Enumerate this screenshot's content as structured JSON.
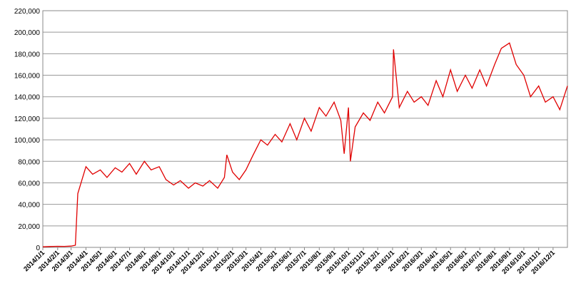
{
  "chart_data": {
    "type": "line",
    "color": "#e00000",
    "grid": true,
    "xlim": [
      "2014/1/1",
      "2016/12/31"
    ],
    "xticks": [
      "2014/1/1",
      "2014/2/1",
      "2014/3/1",
      "2014/4/1",
      "2014/5/1",
      "2014/6/1",
      "2014/7/1",
      "2014/8/1",
      "2014/9/1",
      "2014/10/1",
      "2014/11/1",
      "2014/12/1",
      "2015/1/1",
      "2015/2/1",
      "2015/3/1",
      "2015/4/1",
      "2015/5/1",
      "2015/6/1",
      "2015/7/1",
      "2015/8/1",
      "2015/9/1",
      "2015/10/1",
      "2015/11/1",
      "2015/12/1",
      "2016/1/1",
      "2016/2/1",
      "2016/3/1",
      "2016/4/1",
      "2016/5/1",
      "2016/6/1",
      "2016/7/1",
      "2016/8/1",
      "2016/9/1",
      "2016/10/1",
      "2016/11/1",
      "2016/12/1"
    ],
    "ylim": [
      0,
      220000
    ],
    "yticks": [
      0,
      {
        "value": 20000,
        "label": "20,000"
      },
      {
        "value": 40000,
        "label": "40,000"
      },
      {
        "value": 60000,
        "label": "60,000"
      },
      {
        "value": 80000,
        "label": "80,000"
      },
      {
        "value": 100000,
        "label": "100,000"
      },
      {
        "value": 120000,
        "label": "120,000"
      },
      {
        "value": 140000,
        "label": "140,000"
      },
      {
        "value": 160000,
        "label": "160,000"
      },
      {
        "value": 180000,
        "label": "180,000"
      },
      {
        "value": 200000,
        "label": "200,000"
      },
      {
        "value": 220000,
        "label": "220,000"
      }
    ],
    "x": [
      "2014/1/1",
      "2014/1/15",
      "2014/2/1",
      "2014/2/15",
      "2014/3/1",
      "2014/3/10",
      "2014/3/15",
      "2014/4/1",
      "2014/4/15",
      "2014/5/1",
      "2014/5/15",
      "2014/6/1",
      "2014/6/15",
      "2014/7/1",
      "2014/7/15",
      "2014/8/1",
      "2014/8/15",
      "2014/9/1",
      "2014/9/15",
      "2014/10/1",
      "2014/10/15",
      "2014/11/1",
      "2014/11/15",
      "2014/12/1",
      "2014/12/15",
      "2015/1/1",
      "2015/1/15",
      "2015/1/20",
      "2015/2/1",
      "2015/2/15",
      "2015/3/1",
      "2015/3/15",
      "2015/4/1",
      "2015/4/15",
      "2015/5/1",
      "2015/5/15",
      "2015/6/1",
      "2015/6/15",
      "2015/7/1",
      "2015/7/15",
      "2015/8/1",
      "2015/8/15",
      "2015/9/1",
      "2015/9/15",
      "2015/9/22",
      "2015/10/1",
      "2015/10/5",
      "2015/10/15",
      "2015/11/1",
      "2015/11/15",
      "2015/12/1",
      "2015/12/15",
      "2016/1/1",
      "2016/1/3",
      "2016/1/15",
      "2016/2/1",
      "2016/2/15",
      "2016/3/1",
      "2016/3/15",
      "2016/4/1",
      "2016/4/15",
      "2016/5/1",
      "2016/5/15",
      "2016/6/1",
      "2016/6/15",
      "2016/7/1",
      "2016/7/15",
      "2016/8/1",
      "2016/8/15",
      "2016/9/1",
      "2016/9/15",
      "2016/10/1",
      "2016/10/15",
      "2016/11/1",
      "2016/11/15",
      "2016/12/1",
      "2016/12/15",
      "2016/12/31"
    ],
    "values": [
      500,
      800,
      1000,
      900,
      1200,
      2000,
      50000,
      75000,
      68000,
      72000,
      65000,
      74000,
      70000,
      78000,
      68000,
      80000,
      72000,
      75000,
      63000,
      58000,
      62000,
      55000,
      60000,
      57000,
      62000,
      55000,
      65000,
      86000,
      70000,
      63000,
      72000,
      85000,
      100000,
      95000,
      105000,
      98000,
      115000,
      100000,
      120000,
      108000,
      130000,
      122000,
      135000,
      118000,
      87000,
      130000,
      80000,
      112000,
      125000,
      118000,
      135000,
      125000,
      140000,
      184000,
      130000,
      145000,
      135000,
      140000,
      132000,
      155000,
      140000,
      165000,
      145000,
      160000,
      148000,
      165000,
      150000,
      170000,
      185000,
      190000,
      170000,
      160000,
      140000,
      150000,
      135000,
      140000,
      128000,
      150000
    ]
  }
}
